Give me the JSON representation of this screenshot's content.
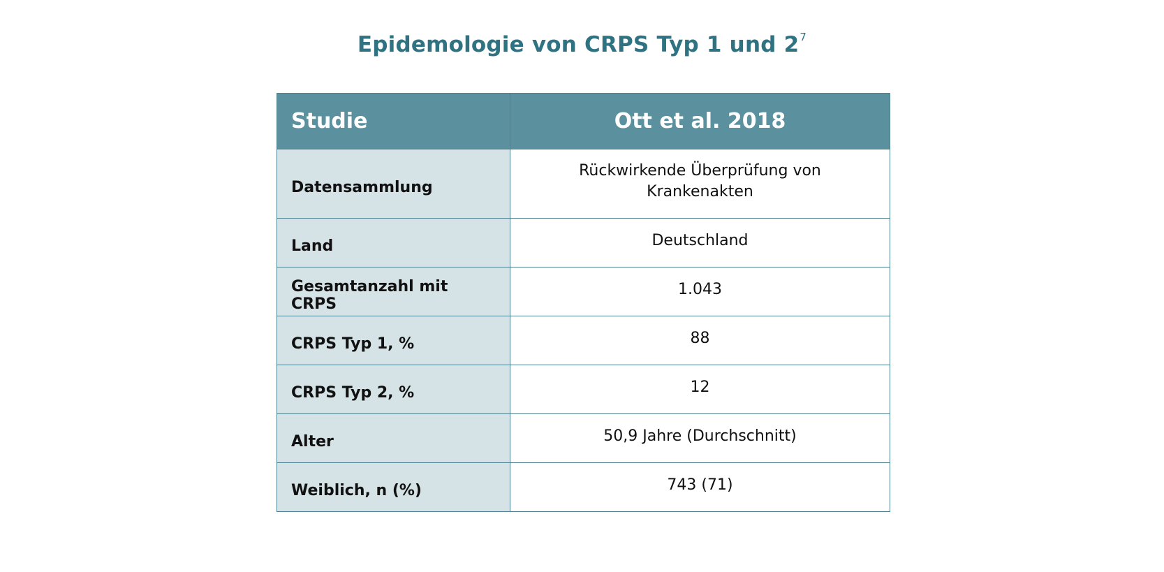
{
  "title": {
    "text": "Epidemologie von CRPS Typ 1 und 2",
    "superscript": "7"
  },
  "table": {
    "header": {
      "col1": "Studie",
      "col2": "Ott et al. 2018"
    },
    "rows": [
      {
        "label": "Datensammlung",
        "value": "Rückwirkende Überprüfung von Krankenakten"
      },
      {
        "label": "Land",
        "value": "Deutschland"
      },
      {
        "label": "Gesamtanzahl mit CRPS",
        "value": "1.043"
      },
      {
        "label": "CRPS Typ 1, %",
        "value": "88"
      },
      {
        "label": "CRPS Typ 2, %",
        "value": "12"
      },
      {
        "label": "Alter",
        "value": "50,9 Jahre (Durchschnitt)"
      },
      {
        "label": "Weiblich, n (%)",
        "value": "743 (71)"
      }
    ]
  },
  "colors": {
    "title": "#2f7383",
    "header_bg": "#5b919e",
    "label_bg": "#d5e3e6",
    "border": "#4f8191"
  }
}
